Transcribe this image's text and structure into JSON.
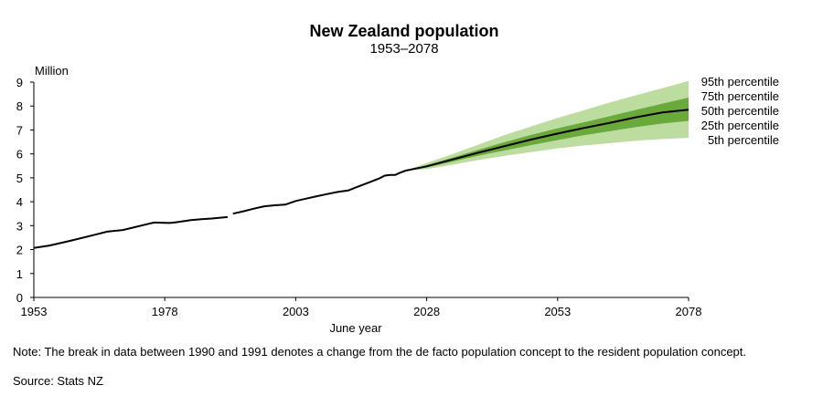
{
  "colors": {
    "band_outer": "#bcdca0",
    "band_inner": "#6aaa3c",
    "line": "#000000",
    "axis": "#000000"
  },
  "note": "Note: The break in data between 1990 and 1991 denotes a change from the de facto population concept to the resident population concept.",
  "source": "Source: Stats NZ",
  "chart_data": {
    "type": "line",
    "title": "New Zealand population",
    "subtitle": "1953–2078",
    "xlabel": "June year",
    "ylabel": "Million",
    "xlim": [
      1953,
      2078
    ],
    "ylim": [
      0,
      9
    ],
    "x_ticks": [
      1953,
      1978,
      2003,
      2028,
      2053,
      2078
    ],
    "y_ticks": [
      0,
      1,
      2,
      3,
      4,
      5,
      6,
      7,
      8,
      9
    ],
    "grid": false,
    "legend": [
      "95th percentile",
      "75th percentile",
      "50th percentile",
      "25th percentile",
      "5th percentile"
    ],
    "legend_placement": "right",
    "series": [
      {
        "segment": "de facto population",
        "x": [
          1953,
          1956,
          1960,
          1965,
          1967,
          1970,
          1975,
          1976,
          1978,
          1979,
          1980,
          1983,
          1985,
          1987,
          1990
        ],
        "y": [
          2.07,
          2.17,
          2.37,
          2.64,
          2.75,
          2.82,
          3.08,
          3.13,
          3.12,
          3.11,
          3.14,
          3.23,
          3.27,
          3.3,
          3.36
        ]
      },
      {
        "segment": "resident population",
        "x": [
          1991,
          1993,
          1995,
          1997,
          1999,
          2001,
          2003,
          2005,
          2007,
          2009,
          2011,
          2013,
          2015,
          2017,
          2019,
          2020,
          2021,
          2022,
          2023,
          2024
        ],
        "y": [
          3.5,
          3.6,
          3.71,
          3.81,
          3.85,
          3.88,
          4.03,
          4.13,
          4.23,
          4.32,
          4.41,
          4.47,
          4.64,
          4.81,
          4.98,
          5.09,
          5.12,
          5.12,
          5.22,
          5.3
        ]
      }
    ],
    "projection": {
      "x": [
        2024,
        2028,
        2033,
        2038,
        2043,
        2048,
        2053,
        2058,
        2063,
        2068,
        2073,
        2078
      ],
      "p95": [
        5.3,
        5.62,
        6.0,
        6.4,
        6.8,
        7.15,
        7.5,
        7.82,
        8.15,
        8.45,
        8.75,
        9.05
      ],
      "p75": [
        5.3,
        5.53,
        5.85,
        6.18,
        6.5,
        6.8,
        7.07,
        7.32,
        7.58,
        7.84,
        8.1,
        8.35
      ],
      "p50": [
        5.3,
        5.48,
        5.77,
        6.06,
        6.33,
        6.6,
        6.85,
        7.08,
        7.3,
        7.53,
        7.73,
        7.85
      ],
      "p25": [
        5.3,
        5.43,
        5.68,
        5.93,
        6.15,
        6.37,
        6.58,
        6.78,
        6.95,
        7.12,
        7.27,
        7.38
      ],
      "p5": [
        5.3,
        5.36,
        5.55,
        5.75,
        5.92,
        6.08,
        6.23,
        6.35,
        6.45,
        6.55,
        6.62,
        6.67
      ]
    }
  }
}
